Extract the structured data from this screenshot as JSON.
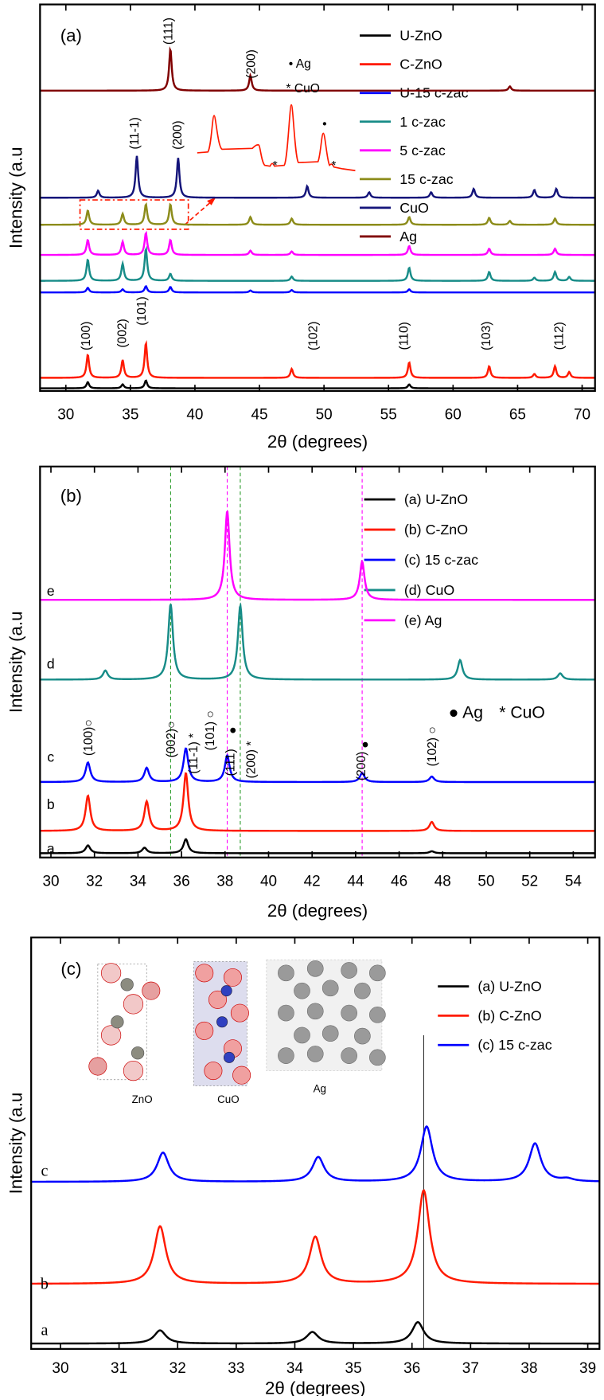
{
  "chart_data": [
    {
      "type": "line",
      "panel_label": "(a)",
      "x_label": "2θ (degrees)",
      "y_label": "Intensity (a.u",
      "xlim": [
        28,
        71
      ],
      "xticks": [
        30,
        35,
        40,
        45,
        50,
        55,
        60,
        65,
        70
      ],
      "ylim": [
        0,
        100
      ],
      "peak_width": 0.12,
      "series": [
        {
          "name": "U-ZnO",
          "color": "#000000",
          "baseline": 0.7,
          "x": [
            31.7,
            34.4,
            36.2,
            56.6
          ],
          "values": [
            1.6,
            1,
            2,
            1
          ]
        },
        {
          "name": "C-ZnO",
          "color": "#ff1a00",
          "baseline": 3.4,
          "x": [
            31.7,
            34.4,
            36.2,
            47.5,
            56.6,
            62.8,
            66.3,
            67.9,
            69
          ],
          "values": [
            6,
            4.6,
            9,
            2.3,
            4,
            3,
            1,
            3,
            1.5
          ]
        },
        {
          "name": "U-15 c-zac",
          "color": "#0000ff",
          "baseline": 25.5,
          "x": [
            31.7,
            34.4,
            36.2,
            38.1,
            44.3,
            47.5,
            56.6
          ],
          "values": [
            1.2,
            0.8,
            1.6,
            1.4,
            0.5,
            0.6,
            0.8
          ]
        },
        {
          "name": "1 c-zac",
          "color": "#178c88",
          "baseline": 28.5,
          "x": [
            31.7,
            34.4,
            36.2,
            38.1,
            47.5,
            56.6,
            62.8,
            66.3,
            67.9,
            69
          ],
          "values": [
            5.5,
            4.4,
            8.3,
            1.8,
            1.1,
            3.4,
            2.3,
            0.8,
            2.3,
            1
          ]
        },
        {
          "name": "5 c-zac",
          "color": "#ff00ff",
          "baseline": 35.2,
          "x": [
            31.7,
            34.4,
            36.2,
            38.1,
            44.3,
            47.5,
            56.6,
            62.8,
            67.9
          ],
          "values": [
            3.9,
            3.4,
            5.7,
            3.9,
            1.1,
            0.9,
            2.3,
            1.6,
            1.6
          ]
        },
        {
          "name": "15 c-zac",
          "color": "#8c8c1a",
          "baseline": 43,
          "x": [
            31.7,
            34.4,
            36.2,
            38.1,
            44.3,
            47.5,
            56.6,
            62.8,
            64.4,
            67.9
          ],
          "values": [
            3.7,
            2.8,
            5.3,
            5.3,
            2,
            1.6,
            2,
            1.8,
            1,
            1.6
          ]
        },
        {
          "name": "CuO",
          "color": "#14147a",
          "baseline": 50,
          "x": [
            32.5,
            35.5,
            38.7,
            48.7,
            53.5,
            58.3,
            61.6,
            66.3,
            68
          ],
          "values": [
            1.8,
            10.8,
            10.3,
            3,
            1.4,
            1.4,
            2.3,
            2,
            2.3
          ]
        },
        {
          "name": "Ag",
          "color": "#800000",
          "baseline": 77.7,
          "x": [
            38.1,
            44.3,
            64.4
          ],
          "values": [
            10.8,
            3.9,
            1.1
          ]
        }
      ],
      "annotations": [
        "(111)",
        "(200)",
        "• Ag",
        "* CuO",
        "(11-1)",
        "(200)",
        "*",
        "•",
        "*",
        "(100)",
        "(002)",
        "(101)",
        "(102)",
        "(110)",
        "(103)",
        "(112)"
      ]
    },
    {
      "type": "line",
      "panel_label": "(b)",
      "x_label": "2θ (degrees)",
      "y_label": "Intensity (a.u",
      "xlim": [
        29.5,
        55
      ],
      "xticks": [
        30,
        32,
        34,
        36,
        38,
        40,
        42,
        44,
        46,
        48,
        50,
        52,
        54
      ],
      "ylim": [
        0,
        100
      ],
      "peak_width": 0.13,
      "series": [
        {
          "name": "(a) U-ZnO",
          "tag": "a",
          "color": "#000000",
          "baseline": 1.1,
          "x": [
            31.7,
            34.3,
            36.2,
            47.5
          ],
          "values": [
            2,
            1.4,
            3.6,
            0.5
          ]
        },
        {
          "name": "(b) C-ZnO",
          "tag": "b",
          "color": "#ff1a00",
          "baseline": 6.8,
          "x": [
            31.7,
            34.4,
            36.2,
            47.5
          ],
          "values": [
            9,
            7.5,
            14.8,
            2.3
          ]
        },
        {
          "name": "(c) 15 c-zac",
          "tag": "c",
          "color": "#0000ff",
          "baseline": 19.3,
          "x": [
            31.7,
            34.4,
            36.2,
            38.1,
            44.3,
            47.5
          ],
          "values": [
            5,
            3.6,
            8.6,
            6.8,
            2.3,
            1.4
          ]
        },
        {
          "name": "(d) CuO",
          "tag": "d",
          "color": "#178c88",
          "baseline": 45.5,
          "x": [
            32.5,
            35.5,
            38.7,
            48.8,
            53.4
          ],
          "values": [
            2.3,
            19.3,
            18.9,
            5,
            1.6
          ]
        },
        {
          "name": "(e) Ag",
          "tag": "e",
          "color": "#ff00ff",
          "baseline": 65.9,
          "x": [
            38.1,
            44.3
          ],
          "values": [
            22.7,
            9.8
          ]
        }
      ],
      "ref_lines": [
        {
          "x": 35.5,
          "color": "#2e9e2e"
        },
        {
          "x": 38.7,
          "color": "#2e9e2e"
        },
        {
          "x": 38.1,
          "color": "#ff00ff"
        },
        {
          "x": 44.3,
          "color": "#ff00ff"
        }
      ],
      "annotations": [
        "(100)○",
        "(002)○",
        "(11-1) *",
        "(101) ○",
        "●",
        "(111)",
        "(200) *",
        "●",
        "(200)",
        "(102) ○",
        "● Ag",
        "* CuO"
      ]
    },
    {
      "type": "line",
      "panel_label": "(c)",
      "x_label": "2θ (degrees)",
      "y_label": "Intensity (a.u",
      "xlim": [
        29.5,
        39.2
      ],
      "xticks": [
        30,
        31,
        32,
        33,
        34,
        35,
        36,
        37,
        38,
        39
      ],
      "ylim": [
        0,
        100
      ],
      "peak_width": 0.12,
      "series": [
        {
          "name": "(a) U-ZnO",
          "tag": "a",
          "color": "#000000",
          "baseline": 1.3,
          "x": [
            31.7,
            34.3,
            36.1
          ],
          "values": [
            3.2,
            2.8,
            5.2
          ]
        },
        {
          "name": "(b) C-ZnO",
          "tag": "b",
          "color": "#ff1a00",
          "baseline": 15.8,
          "x": [
            31.7,
            34.35,
            36.2
          ],
          "values": [
            14,
            11.4,
            22.7
          ]
        },
        {
          "name": "(c) 15 c-zac",
          "tag": "c",
          "color": "#0000ff",
          "baseline": 40.6,
          "x": [
            31.75,
            34.4,
            36.25,
            38.1,
            38.65
          ],
          "values": [
            7.1,
            6,
            13.4,
            9.3,
            0.6
          ]
        }
      ],
      "ref_lines": [
        {
          "x": 36.2,
          "color": "#333333"
        }
      ],
      "structure_labels": [
        "ZnO",
        "CuO",
        "Ag"
      ]
    }
  ]
}
